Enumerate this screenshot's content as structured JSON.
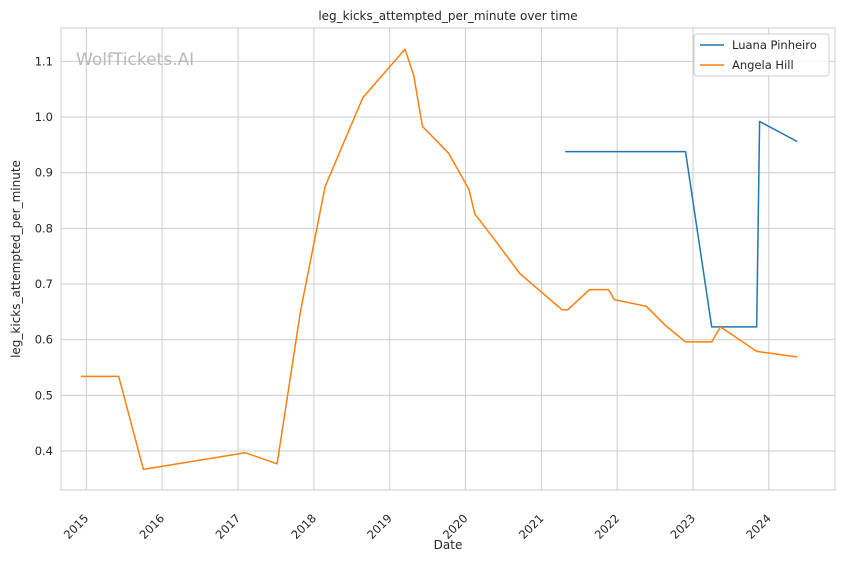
{
  "chart_data": {
    "type": "line",
    "title": "leg_kicks_attempted_per_minute over time",
    "xlabel": "Date",
    "ylabel": "leg_kicks_attempted_per_minute",
    "watermark": "WolfTickets.AI",
    "x_ticks": [
      "2015",
      "2016",
      "2017",
      "2018",
      "2019",
      "2020",
      "2021",
      "2022",
      "2023",
      "2024"
    ],
    "y_ticks": [
      "0.4",
      "0.5",
      "0.6",
      "0.7",
      "0.8",
      "0.9",
      "1.0",
      "1.1"
    ],
    "xlim": [
      "2014-09-01",
      "2024-11-15"
    ],
    "ylim": [
      0.33,
      1.16
    ],
    "grid": true,
    "legend_position": "top-right",
    "series": [
      {
        "name": "Luana Pinheiro",
        "color": "#1f77b4",
        "points": [
          [
            "2021-04-25",
            0.938
          ],
          [
            "2022-11-26",
            0.938
          ],
          [
            "2023-04-01",
            0.623
          ],
          [
            "2023-11-04",
            0.623
          ],
          [
            "2023-11-18",
            0.992
          ],
          [
            "2024-05-18",
            0.956
          ]
        ]
      },
      {
        "name": "Angela Hill",
        "color": "#ff7f0e",
        "points": [
          [
            "2014-12-06",
            0.534
          ],
          [
            "2015-06-06",
            0.534
          ],
          [
            "2015-10-03",
            0.367
          ],
          [
            "2017-02-04",
            0.397
          ],
          [
            "2017-07-08",
            0.377
          ],
          [
            "2017-10-28",
            0.65
          ],
          [
            "2018-02-24",
            0.875
          ],
          [
            "2018-08-25",
            1.035
          ],
          [
            "2019-03-16",
            1.122
          ],
          [
            "2019-04-27",
            1.075
          ],
          [
            "2019-06-08",
            0.983
          ],
          [
            "2019-10-12",
            0.935
          ],
          [
            "2020-01-18",
            0.87
          ],
          [
            "2020-02-15",
            0.826
          ],
          [
            "2020-05-30",
            0.775
          ],
          [
            "2020-09-19",
            0.719
          ],
          [
            "2021-04-10",
            0.654
          ],
          [
            "2021-05-08",
            0.654
          ],
          [
            "2021-08-21",
            0.69
          ],
          [
            "2021-11-20",
            0.69
          ],
          [
            "2021-12-18",
            0.672
          ],
          [
            "2022-05-21",
            0.66
          ],
          [
            "2022-08-20",
            0.626
          ],
          [
            "2022-11-26",
            0.596
          ],
          [
            "2023-04-01",
            0.596
          ],
          [
            "2023-05-13",
            0.623
          ],
          [
            "2023-11-04",
            0.579
          ],
          [
            "2024-05-18",
            0.569
          ]
        ]
      }
    ]
  }
}
